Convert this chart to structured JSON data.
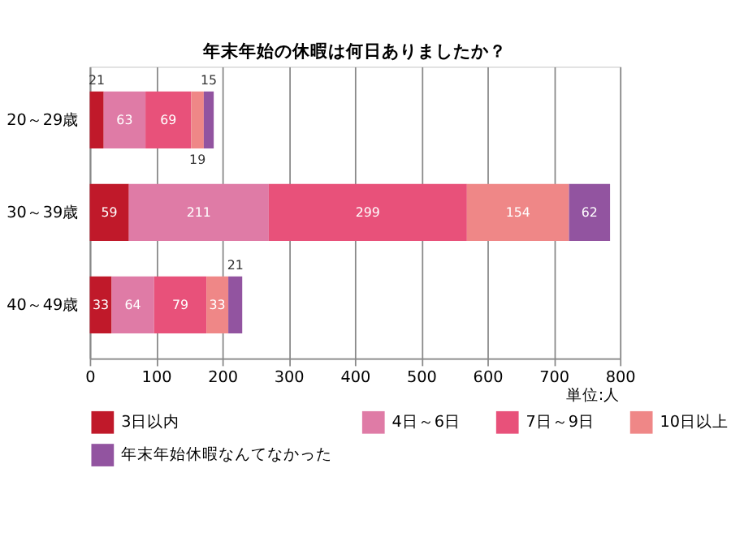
{
  "chart_data": {
    "type": "bar",
    "orientation": "horizontal",
    "stacked": true,
    "title": "年末年始の休暇は何日ありましたか？",
    "categories": [
      "20～29歳",
      "30～39歳",
      "40～49歳"
    ],
    "series": [
      {
        "name": "3日以内",
        "color": "#c0192a",
        "values": [
          21,
          59,
          33
        ]
      },
      {
        "name": "4日～6日",
        "color": "#df7ba6",
        "values": [
          63,
          211,
          64
        ]
      },
      {
        "name": "7日～9日",
        "color": "#e8517a",
        "values": [
          69,
          299,
          79
        ]
      },
      {
        "name": "10日以上",
        "color": "#ef8787",
        "values": [
          19,
          154,
          33
        ]
      },
      {
        "name": "年末年始休暇なんてなかった",
        "color": "#9254a0",
        "values": [
          15,
          62,
          21
        ]
      }
    ],
    "xlim": [
      0,
      800
    ],
    "xticks": [
      0,
      100,
      200,
      300,
      400,
      500,
      600,
      700,
      800
    ],
    "grid": "x",
    "legend": "bottom",
    "data_labels": true,
    "annotations": [
      "単位:人"
    ]
  }
}
